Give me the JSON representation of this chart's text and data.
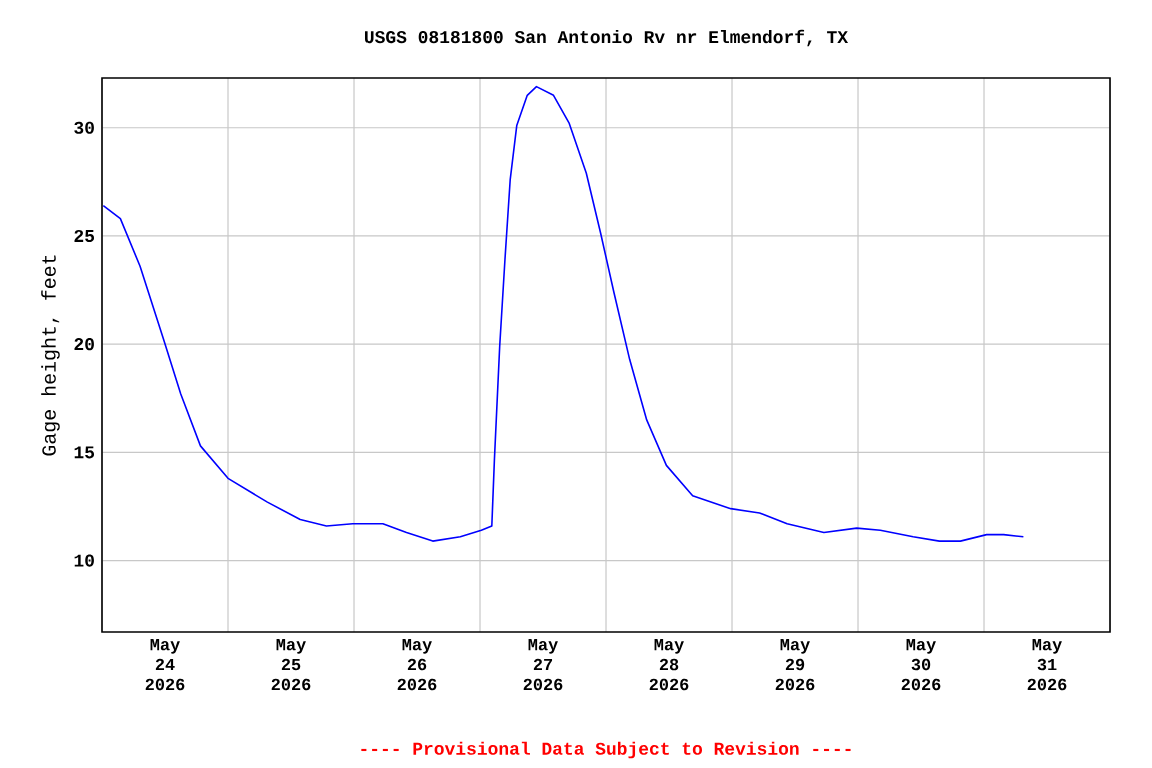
{
  "chart_data": {
    "type": "line",
    "title": "USGS 08181800 San Antonio Rv nr Elmendorf, TX",
    "ylabel": "Gage height, feet",
    "annotations": [
      "---- Provisional Data Subject to Revision ----"
    ],
    "x": [
      "2026-05-24T00:15",
      "2026-05-24T03:30",
      "2026-05-24T07:15",
      "2026-05-24T11:45",
      "2026-05-24T15:00",
      "2026-05-24T18:45",
      "2026-05-25T00:00",
      "2026-05-25T07:30",
      "2026-05-25T13:45",
      "2026-05-25T18:45",
      "2026-05-25T23:45",
      "2026-05-26T05:30",
      "2026-05-26T10:00",
      "2026-05-26T15:00",
      "2026-05-26T20:15",
      "2026-05-27T00:15",
      "2026-05-27T02:15",
      "2026-05-27T02:45",
      "2026-05-27T03:45",
      "2026-05-27T04:45",
      "2026-05-27T05:45",
      "2026-05-27T07:00",
      "2026-05-27T09:00",
      "2026-05-27T10:45",
      "2026-05-27T14:00",
      "2026-05-27T17:00",
      "2026-05-27T20:15",
      "2026-05-27T23:00",
      "2026-05-28T01:30",
      "2026-05-28T04:30",
      "2026-05-28T07:45",
      "2026-05-28T11:30",
      "2026-05-28T16:30",
      "2026-05-28T23:45",
      "2026-05-29T05:15",
      "2026-05-29T10:30",
      "2026-05-29T17:30",
      "2026-05-29T23:45",
      "2026-05-30T04:15",
      "2026-05-30T10:30",
      "2026-05-30T15:30",
      "2026-05-30T19:30",
      "2026-05-31T00:30",
      "2026-05-31T03:45",
      "2026-05-31T07:30"
    ],
    "series": [
      {
        "color": "#0000ff",
        "values": [
          26.4,
          25.8,
          23.6,
          20.2,
          17.7,
          15.3,
          13.8,
          12.7,
          11.9,
          11.6,
          11.7,
          11.7,
          11.3,
          10.9,
          11.1,
          11.4,
          11.6,
          14.7,
          19.9,
          23.9,
          27.6,
          30.1,
          31.5,
          31.9,
          31.5,
          30.2,
          27.9,
          25.1,
          22.4,
          19.3,
          16.5,
          14.4,
          13.0,
          12.4,
          12.2,
          11.7,
          11.3,
          11.5,
          11.4,
          11.1,
          10.9,
          10.9,
          11.2,
          11.2,
          11.1
        ]
      }
    ],
    "xlim": [
      "2026-05-24T00:00",
      "2026-06-01T00:00"
    ],
    "xticks": [
      {
        "value": "2026-05-24T00:00",
        "label": null
      },
      {
        "value": "2026-05-25T00:00",
        "label": null
      },
      {
        "value": "2026-05-26T00:00",
        "label": null
      },
      {
        "value": "2026-05-27T00:00",
        "label": null
      },
      {
        "value": "2026-05-28T00:00",
        "label": null
      },
      {
        "value": "2026-05-29T00:00",
        "label": null
      },
      {
        "value": "2026-05-30T00:00",
        "label": null
      },
      {
        "value": "2026-05-31T00:00",
        "label": null
      },
      {
        "value": "2026-06-01T00:00",
        "label": null
      },
      {
        "value": "2026-05-24T12:00",
        "label": "May 24 2026"
      },
      {
        "value": "2026-05-25T12:00",
        "label": "May 25 2026"
      },
      {
        "value": "2026-05-26T12:00",
        "label": "May 26 2026"
      },
      {
        "value": "2026-05-27T12:00",
        "label": "May 27 2026"
      },
      {
        "value": "2026-05-28T12:00",
        "label": "May 28 2026"
      },
      {
        "value": "2026-05-29T12:00",
        "label": "May 29 2026"
      },
      {
        "value": "2026-05-30T12:00",
        "label": "May 30 2026"
      },
      {
        "value": "2026-05-31T12:00",
        "label": "May 31 2026"
      }
    ],
    "ylim": [
      6.7,
      32.3
    ],
    "yticks": [
      10,
      15,
      20,
      25,
      30
    ],
    "grid": true
  }
}
